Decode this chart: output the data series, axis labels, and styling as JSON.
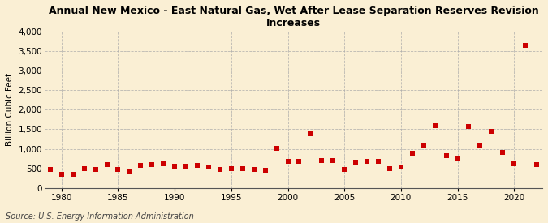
{
  "title": "Annual New Mexico - East Natural Gas, Wet After Lease Separation Reserves Revision\nIncreases",
  "ylabel": "Billion Cubic Feet",
  "source": "Source: U.S. Energy Information Administration",
  "background_color": "#faefd4",
  "plot_background_color": "#faefd4",
  "marker_color": "#cc0000",
  "marker_size": 4.5,
  "xlim": [
    1978.5,
    2022.5
  ],
  "ylim": [
    0,
    4000
  ],
  "yticks": [
    0,
    500,
    1000,
    1500,
    2000,
    2500,
    3000,
    3500,
    4000
  ],
  "xticks": [
    1980,
    1985,
    1990,
    1995,
    2000,
    2005,
    2010,
    2015,
    2020
  ],
  "years": [
    1979,
    1980,
    1981,
    1982,
    1983,
    1984,
    1985,
    1986,
    1987,
    1988,
    1989,
    1990,
    1991,
    1992,
    1993,
    1994,
    1995,
    1996,
    1997,
    1998,
    1999,
    2000,
    2001,
    2002,
    2003,
    2004,
    2005,
    2006,
    2007,
    2008,
    2009,
    2010,
    2011,
    2012,
    2013,
    2014,
    2015,
    2016,
    2017,
    2018,
    2019,
    2020,
    2021,
    2022
  ],
  "values": [
    480,
    350,
    340,
    490,
    470,
    600,
    480,
    420,
    580,
    600,
    620,
    550,
    560,
    570,
    540,
    470,
    490,
    500,
    470,
    450,
    1020,
    680,
    680,
    1380,
    700,
    700,
    480,
    670,
    680,
    680,
    500,
    530,
    890,
    1100,
    1600,
    830,
    760,
    1580,
    1100,
    1450,
    900,
    620,
    3650,
    600
  ]
}
